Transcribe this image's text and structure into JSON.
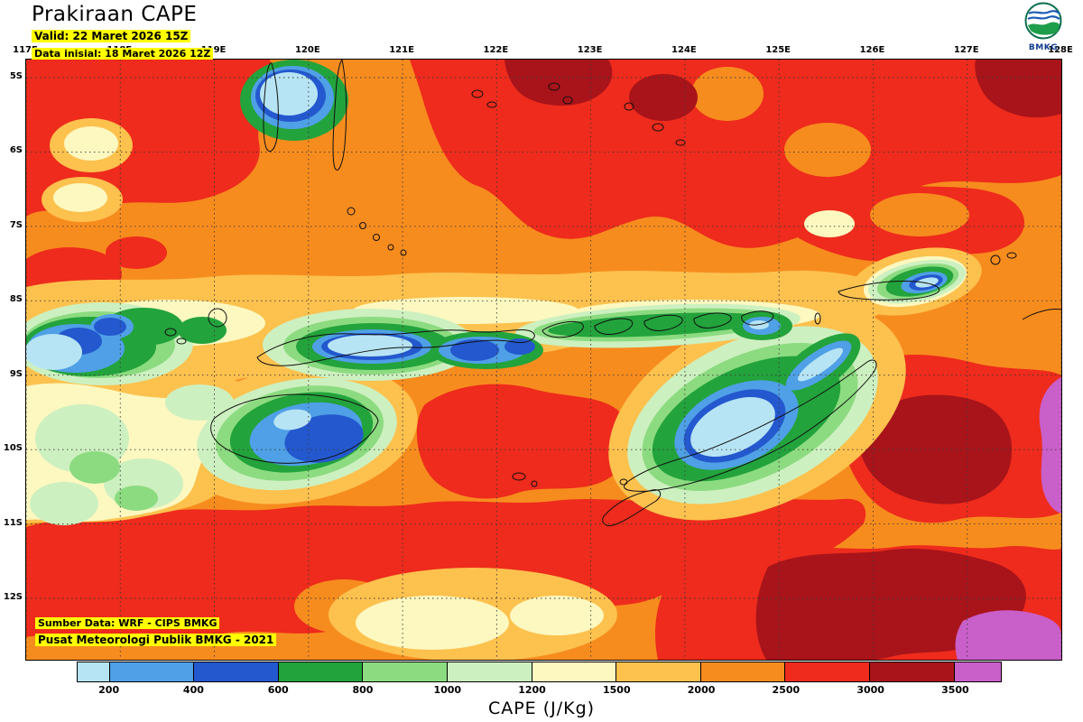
{
  "header": {
    "title": "Prakiraan CAPE",
    "valid_line": "Valid: 22 Maret 2026 15Z",
    "init_line": "Data inisial: 18 Maret 2026 12Z",
    "logo_label": "BMKG"
  },
  "map_axes": {
    "lon_labels": [
      "117E",
      "118E",
      "119E",
      "120E",
      "121E",
      "122E",
      "123E",
      "124E",
      "125E",
      "126E",
      "127E",
      "128E"
    ],
    "lat_labels": [
      "5S",
      "6S",
      "7S",
      "8S",
      "9S",
      "10S",
      "11S",
      "12S"
    ]
  },
  "map_overlay": {
    "attribution_line1": "Sumber Data: WRF - CIPS BMKG",
    "attribution_line2": "Pusat Meteorologi Publik BMKG - 2021"
  },
  "colorbar": {
    "caption": "CAPE (J/Kg)",
    "tick_labels": [
      "200",
      "400",
      "600",
      "800",
      "1000",
      "1200",
      "1500",
      "2000",
      "2500",
      "3000",
      "3500"
    ],
    "segment_colors": [
      "#B7E4F4",
      "#4FA0E6",
      "#2458CE",
      "#23A33C",
      "#8CDB80",
      "#CDF0C0",
      "#FCF8C0",
      "#FDC14E",
      "#F78C1E",
      "#EE2B1C",
      "#A8141A",
      "#C95FC9"
    ],
    "highlight_color": "#FFFF00"
  }
}
